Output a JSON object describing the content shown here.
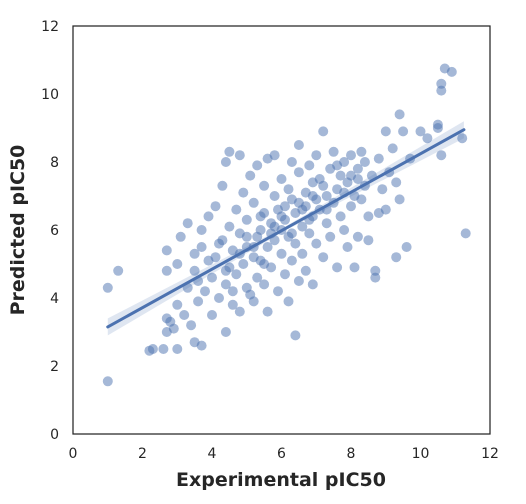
{
  "chart_data": {
    "type": "scatter",
    "title": "",
    "xlabel": "Experimental pIC50",
    "ylabel": "Predicted pIC50",
    "xlim": [
      0,
      12
    ],
    "ylim": [
      0,
      12
    ],
    "xticks": [
      0,
      2,
      4,
      6,
      8,
      10,
      12
    ],
    "yticks": [
      0,
      2,
      4,
      6,
      8,
      10,
      12
    ],
    "grid": false,
    "legend": "none",
    "colors": {
      "points": "#4c72b0",
      "line": "#4c72b0",
      "band": "#4c72b0",
      "axes": "#262626",
      "background": "#ffffff"
    },
    "regression": {
      "start": [
        1.0,
        3.15
      ],
      "end": [
        11.25,
        8.95
      ]
    },
    "series": [
      {
        "points": [
          [
            1.0,
            1.55
          ],
          [
            1.0,
            4.3
          ],
          [
            1.3,
            4.8
          ],
          [
            2.2,
            2.45
          ],
          [
            2.3,
            2.5
          ],
          [
            2.6,
            2.5
          ],
          [
            2.7,
            3.4
          ],
          [
            2.7,
            3.0
          ],
          [
            2.8,
            3.3
          ],
          [
            2.7,
            4.8
          ],
          [
            2.7,
            5.4
          ],
          [
            2.9,
            3.1
          ],
          [
            3.0,
            3.8
          ],
          [
            3.0,
            2.5
          ],
          [
            3.1,
            5.8
          ],
          [
            3.0,
            5.0
          ],
          [
            3.2,
            3.5
          ],
          [
            3.3,
            6.2
          ],
          [
            3.3,
            4.3
          ],
          [
            3.4,
            3.2
          ],
          [
            3.5,
            2.7
          ],
          [
            3.5,
            4.8
          ],
          [
            3.5,
            5.3
          ],
          [
            3.6,
            3.9
          ],
          [
            3.7,
            5.5
          ],
          [
            3.7,
            6.0
          ],
          [
            3.7,
            2.6
          ],
          [
            3.8,
            4.2
          ],
          [
            3.9,
            6.4
          ],
          [
            4.0,
            4.6
          ],
          [
            4.0,
            3.5
          ],
          [
            4.1,
            5.2
          ],
          [
            4.1,
            6.7
          ],
          [
            4.2,
            4.0
          ],
          [
            4.3,
            7.3
          ],
          [
            4.3,
            5.7
          ],
          [
            4.4,
            4.4
          ],
          [
            4.4,
            3.0
          ],
          [
            4.4,
            8.0
          ],
          [
            4.5,
            8.3
          ],
          [
            4.5,
            6.1
          ],
          [
            4.5,
            4.9
          ],
          [
            4.6,
            5.4
          ],
          [
            4.6,
            3.8
          ],
          [
            4.7,
            6.6
          ],
          [
            4.7,
            4.7
          ],
          [
            4.8,
            5.9
          ],
          [
            4.8,
            8.2
          ],
          [
            4.8,
            3.6
          ],
          [
            4.9,
            5.0
          ],
          [
            4.9,
            7.1
          ],
          [
            5.0,
            4.3
          ],
          [
            5.0,
            6.3
          ],
          [
            5.0,
            5.5
          ],
          [
            5.1,
            4.1
          ],
          [
            5.1,
            7.6
          ],
          [
            5.2,
            5.2
          ],
          [
            5.2,
            6.8
          ],
          [
            5.2,
            3.9
          ],
          [
            5.3,
            5.8
          ],
          [
            5.3,
            4.6
          ],
          [
            5.3,
            7.9
          ],
          [
            5.4,
            6.0
          ],
          [
            5.4,
            5.1
          ],
          [
            5.5,
            4.4
          ],
          [
            5.5,
            6.5
          ],
          [
            5.5,
            7.3
          ],
          [
            5.6,
            5.5
          ],
          [
            5.6,
            3.6
          ],
          [
            5.6,
            8.1
          ],
          [
            5.7,
            6.2
          ],
          [
            5.7,
            4.9
          ],
          [
            5.8,
            5.7
          ],
          [
            5.8,
            7.0
          ],
          [
            5.8,
            8.2
          ],
          [
            5.9,
            4.2
          ],
          [
            5.9,
            6.6
          ],
          [
            6.0,
            5.3
          ],
          [
            6.0,
            6.0
          ],
          [
            6.0,
            7.5
          ],
          [
            6.1,
            4.7
          ],
          [
            6.1,
            6.3
          ],
          [
            6.2,
            5.8
          ],
          [
            6.2,
            7.2
          ],
          [
            6.2,
            3.9
          ],
          [
            6.3,
            6.9
          ],
          [
            6.3,
            5.1
          ],
          [
            6.3,
            8.0
          ],
          [
            6.4,
            6.5
          ],
          [
            6.4,
            2.9
          ],
          [
            6.4,
            5.6
          ],
          [
            6.5,
            7.7
          ],
          [
            6.5,
            4.5
          ],
          [
            6.5,
            8.5
          ],
          [
            6.6,
            6.1
          ],
          [
            6.6,
            5.3
          ],
          [
            6.7,
            7.1
          ],
          [
            6.7,
            6.7
          ],
          [
            6.7,
            4.8
          ],
          [
            6.8,
            7.9
          ],
          [
            6.8,
            5.9
          ],
          [
            6.9,
            6.4
          ],
          [
            6.9,
            7.4
          ],
          [
            6.9,
            4.4
          ],
          [
            7.0,
            6.9
          ],
          [
            7.0,
            5.6
          ],
          [
            7.0,
            8.2
          ],
          [
            7.1,
            6.6
          ],
          [
            7.1,
            7.5
          ],
          [
            7.2,
            8.9
          ],
          [
            7.2,
            5.2
          ],
          [
            7.3,
            7.0
          ],
          [
            7.3,
            6.2
          ],
          [
            7.4,
            7.8
          ],
          [
            7.4,
            5.8
          ],
          [
            7.5,
            6.8
          ],
          [
            7.5,
            8.3
          ],
          [
            7.6,
            7.2
          ],
          [
            7.6,
            4.9
          ],
          [
            7.7,
            6.4
          ],
          [
            7.7,
            7.6
          ],
          [
            7.8,
            8.0
          ],
          [
            7.8,
            6.0
          ],
          [
            7.9,
            7.4
          ],
          [
            7.9,
            5.5
          ],
          [
            8.0,
            8.2
          ],
          [
            8.0,
            6.7
          ],
          [
            8.1,
            7.0
          ],
          [
            8.1,
            4.9
          ],
          [
            8.2,
            7.8
          ],
          [
            8.2,
            5.8
          ],
          [
            8.3,
            6.9
          ],
          [
            8.3,
            8.3
          ],
          [
            8.4,
            7.3
          ],
          [
            8.5,
            6.4
          ],
          [
            8.5,
            5.7
          ],
          [
            8.6,
            7.6
          ],
          [
            8.7,
            4.6
          ],
          [
            8.7,
            4.8
          ],
          [
            8.8,
            8.1
          ],
          [
            8.8,
            6.5
          ],
          [
            8.9,
            7.2
          ],
          [
            9.0,
            8.9
          ],
          [
            9.0,
            6.6
          ],
          [
            9.1,
            7.7
          ],
          [
            9.2,
            8.4
          ],
          [
            9.3,
            7.4
          ],
          [
            9.3,
            5.2
          ],
          [
            9.4,
            9.4
          ],
          [
            9.4,
            6.9
          ],
          [
            9.5,
            8.9
          ],
          [
            9.6,
            5.5
          ],
          [
            9.7,
            8.1
          ],
          [
            10.0,
            8.9
          ],
          [
            10.2,
            8.7
          ],
          [
            10.5,
            9.0
          ],
          [
            10.5,
            9.1
          ],
          [
            10.6,
            8.2
          ],
          [
            10.6,
            10.1
          ],
          [
            10.6,
            10.3
          ],
          [
            10.7,
            10.75
          ],
          [
            10.9,
            10.65
          ],
          [
            11.2,
            8.7
          ],
          [
            11.3,
            5.9
          ],
          [
            3.9,
            5.1
          ],
          [
            4.2,
            5.6
          ],
          [
            4.6,
            4.2
          ],
          [
            5.0,
            5.8
          ],
          [
            5.4,
            6.4
          ],
          [
            5.7,
            5.9
          ],
          [
            6.1,
            6.7
          ],
          [
            6.5,
            6.8
          ],
          [
            6.8,
            6.3
          ],
          [
            7.2,
            7.3
          ],
          [
            7.6,
            7.9
          ],
          [
            8.0,
            7.6
          ],
          [
            8.4,
            8.0
          ],
          [
            5.2,
            5.5
          ],
          [
            5.8,
            6.1
          ],
          [
            6.3,
            5.9
          ],
          [
            6.6,
            6.6
          ],
          [
            4.8,
            5.3
          ],
          [
            4.4,
            4.8
          ],
          [
            5.5,
            5.0
          ],
          [
            6.0,
            6.4
          ],
          [
            6.9,
            7.0
          ],
          [
            7.3,
            6.6
          ],
          [
            7.8,
            7.1
          ],
          [
            8.2,
            7.5
          ],
          [
            3.6,
            4.5
          ]
        ]
      }
    ]
  }
}
